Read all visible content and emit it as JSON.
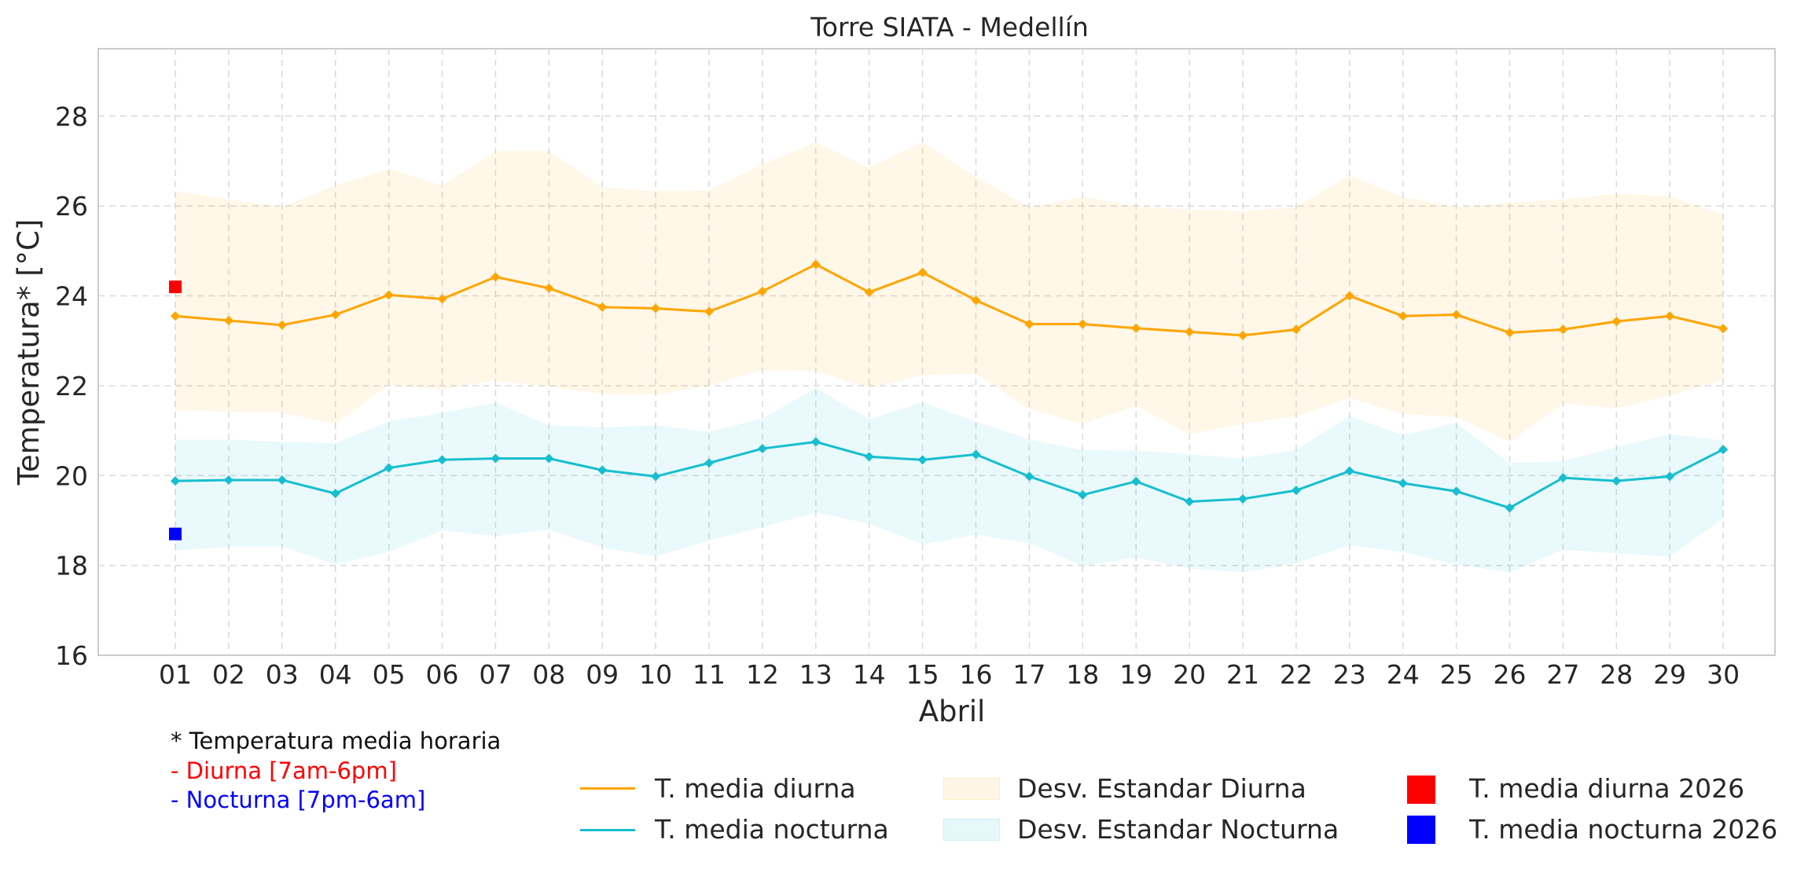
{
  "chart_data": {
    "type": "line",
    "title": "Torre SIATA - Medellín",
    "xlabel": "Abril",
    "ylabel": "Temperatura* [°C]",
    "ylim": [
      16,
      29.5
    ],
    "yticks": [
      16,
      18,
      20,
      22,
      24,
      26,
      28
    ],
    "grid": true,
    "categories": [
      "01",
      "02",
      "03",
      "04",
      "05",
      "06",
      "07",
      "08",
      "09",
      "10",
      "11",
      "12",
      "13",
      "14",
      "15",
      "16",
      "17",
      "18",
      "19",
      "20",
      "21",
      "22",
      "23",
      "24",
      "25",
      "26",
      "27",
      "28",
      "29",
      "30"
    ],
    "series": [
      {
        "name": "T. media diurna",
        "color": "#ffa500",
        "values": [
          23.55,
          23.45,
          23.35,
          23.58,
          24.02,
          23.93,
          24.42,
          24.17,
          23.75,
          23.72,
          23.65,
          24.1,
          24.7,
          24.08,
          24.52,
          23.9,
          23.37,
          23.37,
          23.28,
          23.2,
          23.12,
          23.25,
          24.0,
          23.55,
          23.58,
          23.18,
          23.25,
          23.43,
          23.55,
          23.27
        ]
      },
      {
        "name": "T. media nocturna",
        "color": "#17becf",
        "values": [
          19.88,
          19.9,
          19.9,
          19.6,
          20.17,
          20.35,
          20.38,
          20.38,
          20.12,
          19.98,
          20.28,
          20.6,
          20.75,
          20.42,
          20.35,
          20.47,
          19.98,
          19.57,
          19.87,
          19.42,
          19.48,
          19.67,
          20.1,
          19.83,
          19.65,
          19.28,
          19.95,
          19.88,
          19.98,
          20.58
        ]
      }
    ],
    "bands": [
      {
        "name": "Desv. Estandar Diurna",
        "color": "#ffa500",
        "upper": [
          26.33,
          26.15,
          25.98,
          26.45,
          26.82,
          26.45,
          27.22,
          27.23,
          26.42,
          26.33,
          26.35,
          26.92,
          27.42,
          26.85,
          27.42,
          26.65,
          25.97,
          26.2,
          26.0,
          25.92,
          25.88,
          25.98,
          26.68,
          26.2,
          25.97,
          26.07,
          26.15,
          26.27,
          26.22,
          25.8
        ],
        "lower": [
          21.45,
          21.42,
          21.4,
          21.15,
          22.02,
          21.92,
          22.12,
          21.98,
          21.82,
          21.8,
          22.0,
          22.35,
          22.32,
          21.95,
          22.23,
          22.27,
          21.48,
          21.15,
          21.55,
          20.92,
          21.15,
          21.32,
          21.73,
          21.37,
          21.3,
          20.75,
          21.6,
          21.5,
          21.78,
          22.13
        ]
      },
      {
        "name": "Desv. Estandar Nocturna",
        "color": "#17becf",
        "upper": [
          20.8,
          20.8,
          20.75,
          20.72,
          21.2,
          21.4,
          21.62,
          21.12,
          21.07,
          21.12,
          20.97,
          21.27,
          21.95,
          21.25,
          21.63,
          21.2,
          20.8,
          20.57,
          20.55,
          20.47,
          20.38,
          20.57,
          21.32,
          20.9,
          21.17,
          20.28,
          20.32,
          20.63,
          20.92,
          20.78
        ],
        "lower": [
          18.33,
          18.42,
          18.42,
          18.02,
          18.3,
          18.78,
          18.65,
          18.8,
          18.4,
          18.2,
          18.55,
          18.85,
          19.18,
          18.93,
          18.47,
          18.68,
          18.5,
          17.98,
          18.18,
          17.93,
          17.85,
          18.05,
          18.45,
          18.3,
          18.02,
          17.85,
          18.35,
          18.27,
          18.2,
          19.05
        ]
      }
    ],
    "markers_2026": [
      {
        "name": "T. media diurna 2026",
        "color": "#ff0000",
        "day": "01",
        "value": 24.2
      },
      {
        "name": "T. media nocturna 2026",
        "color": "#0000ff",
        "day": "01",
        "value": 18.7
      }
    ]
  },
  "notes": {
    "line1": "* Temperatura media horaria",
    "line2": "- Diurna [7am-6pm]",
    "line3": "- Nocturna [7pm-6am]"
  },
  "legend": {
    "diurna": "T. media diurna",
    "nocturna": "T. media nocturna",
    "band_diurna": "Desv. Estandar Diurna",
    "band_nocturna": "Desv. Estandar Nocturna",
    "m_diurna": "T. media diurna 2026",
    "m_nocturna": "T. media nocturna 2026"
  }
}
